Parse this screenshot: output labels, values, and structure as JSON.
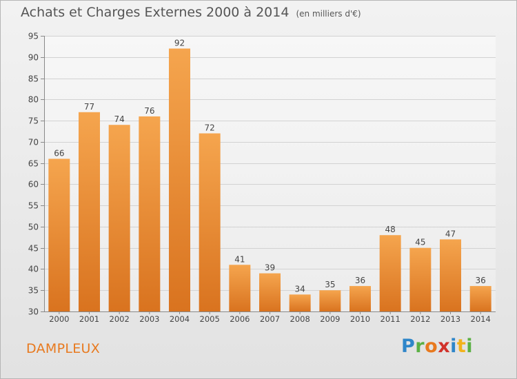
{
  "header": {
    "title": "Achats et Charges Externes 2000 à 2014",
    "unit": "(en milliers d'€)"
  },
  "footer": {
    "commune": "DAMPLEUX",
    "logo_letters": [
      "P",
      "r",
      "o",
      "x",
      "i",
      "t",
      "i"
    ]
  },
  "chart_data": {
    "type": "bar",
    "title": "Achats et Charges Externes 2000 à 2014",
    "subtitle": "(en milliers d'€)",
    "xlabel": "",
    "ylabel": "",
    "categories": [
      "2000",
      "2001",
      "2002",
      "2003",
      "2004",
      "2005",
      "2006",
      "2007",
      "2008",
      "2009",
      "2010",
      "2011",
      "2012",
      "2013",
      "2014"
    ],
    "values": [
      66,
      77,
      74,
      76,
      92,
      72,
      41,
      39,
      34,
      35,
      36,
      48,
      45,
      47,
      36
    ],
    "ylim": [
      30,
      95
    ],
    "yticks": [
      30,
      35,
      40,
      45,
      50,
      55,
      60,
      65,
      70,
      75,
      80,
      85,
      90,
      95
    ],
    "grid": true,
    "bar_color_top": "#f5a54e",
    "bar_color_bottom": "#d9731f"
  }
}
